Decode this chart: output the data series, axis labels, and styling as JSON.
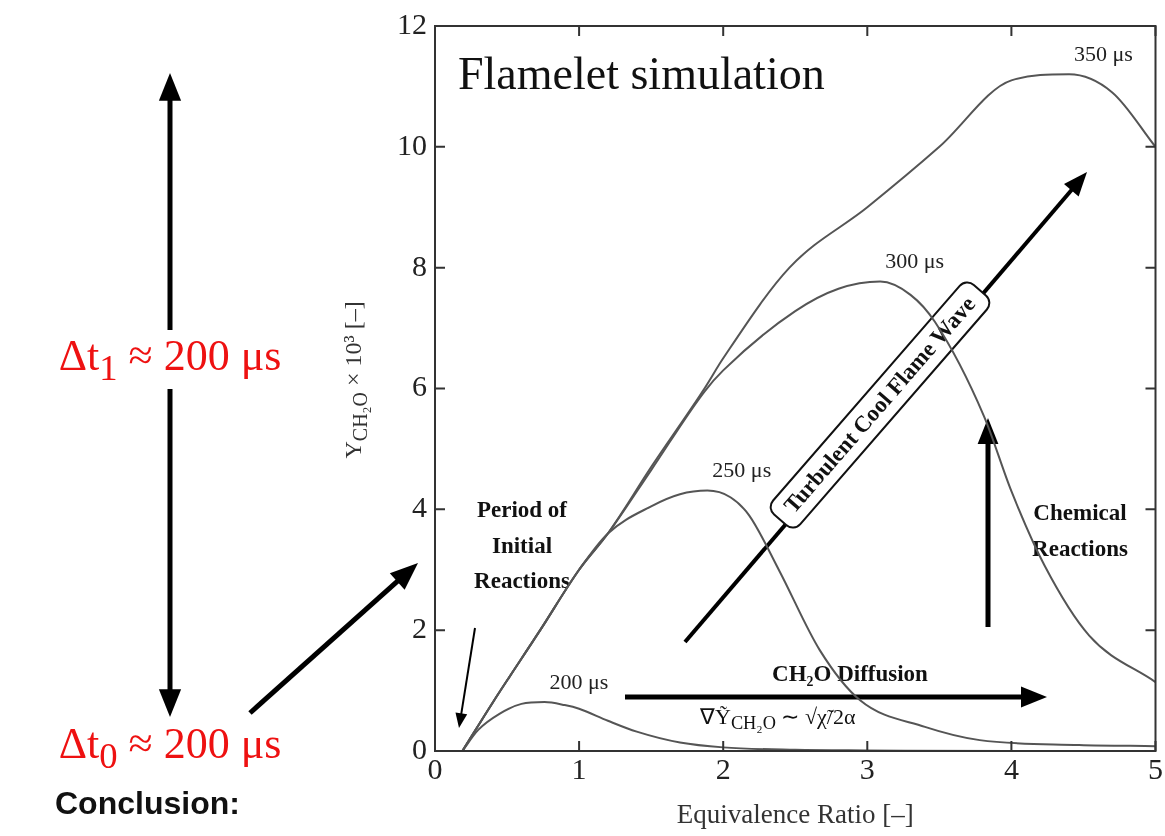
{
  "chart_data": {
    "type": "line",
    "title": "Flamelet simulation",
    "xlabel": "Equivalence Ratio [–]",
    "ylabel": "Y$_{CH₂O}$ × 10³ [–]",
    "xlim": [
      0,
      5
    ],
    "xticks": [
      0,
      1,
      2,
      3,
      4,
      5
    ],
    "ylim": [
      0,
      12
    ],
    "yticks": [
      0,
      2,
      4,
      6,
      8,
      10,
      12
    ],
    "grid": false,
    "legend": false,
    "marker": "none",
    "line_style": "solid",
    "series": [
      {
        "name": "200 μs",
        "color": "#555555",
        "x": [
          0.19,
          0.3,
          0.45,
          0.6,
          0.76,
          0.9,
          1.0,
          1.2,
          1.4,
          1.7,
          2.0,
          2.5,
          3.0,
          4.0,
          5.0
        ],
        "values": [
          0,
          0.35,
          0.62,
          0.78,
          0.81,
          0.76,
          0.7,
          0.5,
          0.32,
          0.14,
          0.06,
          0.02,
          0.01,
          0,
          0
        ]
      },
      {
        "name": "250 μs",
        "color": "#555555",
        "x": [
          0.19,
          0.4,
          0.73,
          1.0,
          1.2,
          1.5,
          1.7,
          1.89,
          2.05,
          2.18,
          2.39,
          2.67,
          2.95,
          3.4,
          3.78,
          4.47,
          5.0
        ],
        "values": [
          0,
          0.8,
          2.0,
          3.0,
          3.6,
          4.05,
          4.25,
          4.31,
          4.2,
          3.9,
          2.98,
          1.67,
          0.84,
          0.4,
          0.18,
          0.1,
          0.08
        ]
      },
      {
        "name": "300 μs",
        "color": "#555555",
        "x": [
          0.19,
          0.4,
          0.73,
          1.0,
          1.2,
          1.5,
          1.87,
          2.0,
          2.5,
          2.8,
          3.09,
          3.3,
          3.47,
          3.81,
          4.0,
          4.23,
          4.54,
          5.0
        ],
        "values": [
          0,
          0.8,
          2.0,
          3.0,
          3.6,
          4.65,
          5.95,
          6.3,
          7.28,
          7.65,
          7.77,
          7.55,
          7.1,
          5.54,
          4.3,
          3.07,
          1.91,
          1.14
        ]
      },
      {
        "name": "350 μs",
        "color": "#555555",
        "x": [
          0.19,
          0.4,
          0.73,
          1.0,
          1.2,
          1.5,
          1.87,
          2.0,
          2.46,
          3.0,
          3.5,
          4.0,
          4.4,
          4.7,
          5.0
        ],
        "values": [
          0,
          0.8,
          2.0,
          3.0,
          3.6,
          4.7,
          6.0,
          6.5,
          8.0,
          9.0,
          10.0,
          11.1,
          11.2,
          10.9,
          10.0
        ]
      }
    ],
    "annotations": [
      "Period of Initial Reactions",
      "Turbulent Cool Flame Wave",
      "Chemical Reactions",
      "CH₂O Diffusion",
      "∇Ỹ$_{CH₂O}$ ∼ √χ̃/2α",
      "Δt$_{1}$ ≈ 200 μs",
      "Δt$_{0}$ ≈ 200 μs",
      "Conclusion:"
    ]
  }
}
